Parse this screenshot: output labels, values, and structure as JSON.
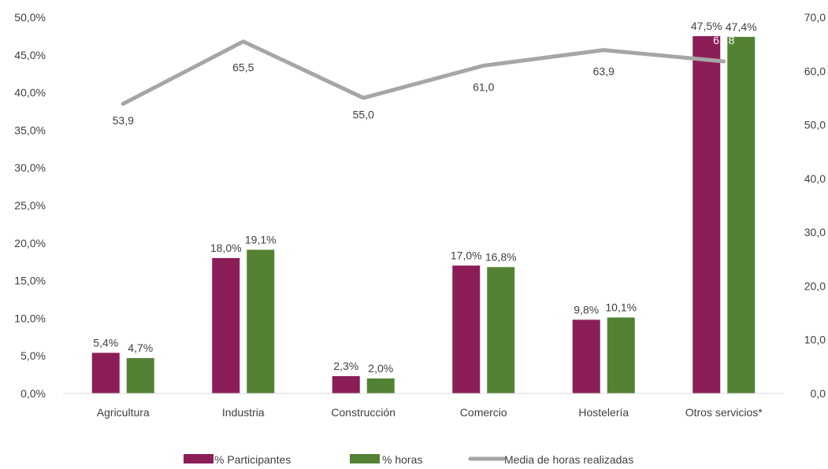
{
  "chart_data": {
    "type": "bar",
    "categories": [
      "Agricultura",
      "Industria",
      "Construcción",
      "Comercio",
      "Hostelería",
      "Otros servicios*"
    ],
    "series": [
      {
        "name": "% Participantes",
        "kind": "bar",
        "axis": "left",
        "color": "#8B1E57",
        "values": [
          5.4,
          18.0,
          2.3,
          17.0,
          9.8,
          47.5
        ],
        "labels": [
          "5,4%",
          "18,0%",
          "2,3%",
          "17,0%",
          "9,8%",
          "47,5%"
        ]
      },
      {
        "name": "% horas",
        "kind": "bar",
        "axis": "left",
        "color": "#548235",
        "values": [
          4.7,
          19.1,
          2.0,
          16.8,
          10.1,
          47.4
        ],
        "labels": [
          "4,7%",
          "19,1%",
          "2,0%",
          "16,8%",
          "10,1%",
          "47,4%"
        ]
      },
      {
        "name": "Media de horas realizadas",
        "kind": "line",
        "axis": "right",
        "color": "#A6A6A6",
        "values": [
          53.9,
          65.5,
          55.0,
          61.0,
          63.9,
          61.8
        ],
        "labels": [
          "53,9",
          "65,5",
          "55,0",
          "61,0",
          "63,9",
          "61,8"
        ]
      }
    ],
    "y_left": {
      "ylim": [
        0,
        50
      ],
      "ticks": [
        0,
        5,
        10,
        15,
        20,
        25,
        30,
        35,
        40,
        45,
        50
      ],
      "tick_labels": [
        "0,0%",
        "5,0%",
        "10,0%",
        "15,0%",
        "20,0%",
        "25,0%",
        "30,0%",
        "35,0%",
        "40,0%",
        "45,0%",
        "50,0%"
      ]
    },
    "y_right": {
      "ylim": [
        0,
        70
      ],
      "ticks": [
        0,
        10,
        20,
        30,
        40,
        50,
        60,
        70
      ],
      "tick_labels": [
        "0,0",
        "10,0",
        "20,0",
        "30,0",
        "40,0",
        "50,0",
        "60,0",
        "70,0"
      ]
    },
    "grid": false,
    "legend": "bottom",
    "title": "",
    "xlabel": "",
    "ylabel": ""
  }
}
